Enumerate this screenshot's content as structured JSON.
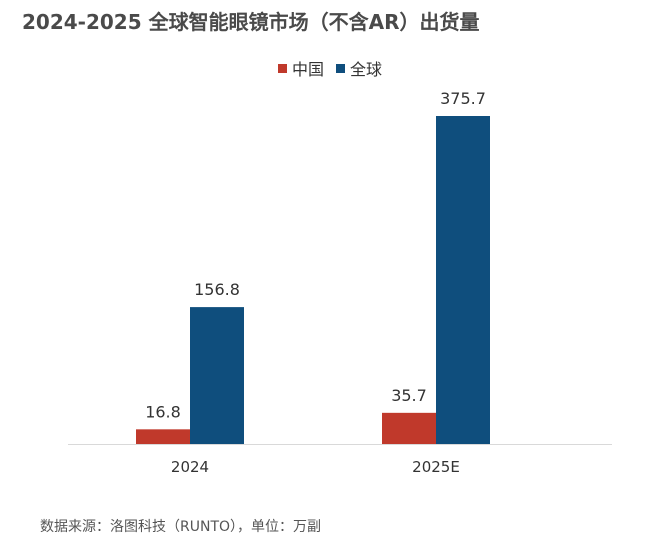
{
  "chart_data": {
    "type": "bar",
    "title": "2024-2025 全球智能眼镜市场（不含AR）出货量",
    "categories": [
      "2024",
      "2025E"
    ],
    "series": [
      {
        "name": "中国",
        "values": [
          16.8,
          35.7
        ],
        "value_labels": [
          "16.8",
          "35.7"
        ],
        "color": "#c0392b"
      },
      {
        "name": "全球",
        "values": [
          156.8,
          375.7
        ],
        "value_labels": [
          "156.8",
          "375.7"
        ],
        "color": "#0f4e7d"
      }
    ],
    "ylim": [
      0,
      375.7
    ],
    "grid": false,
    "legend_position": "top-center",
    "axis_color": "#d9d9d9"
  },
  "source_note": "数据来源：洛图科技（RUNTO），单位：万副"
}
